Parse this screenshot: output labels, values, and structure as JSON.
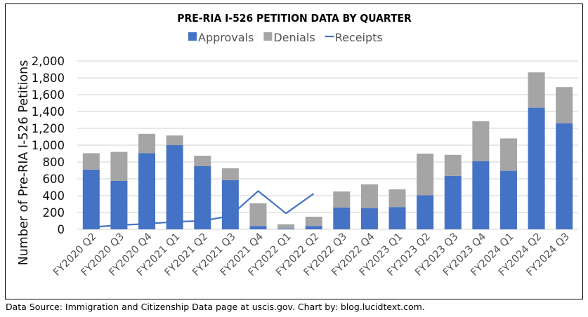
{
  "chart_data": {
    "type": "bar",
    "stacked": true,
    "title": "PRE-RIA I-526 PETITION DATA BY QUARTER",
    "xlabel": "",
    "ylabel": "Number of Pre-RIA I-526 Petitions",
    "ylim": [
      0,
      2000
    ],
    "yticks": [
      0,
      200,
      400,
      600,
      800,
      1000,
      1200,
      1400,
      1600,
      1800,
      2000
    ],
    "ytick_labels": [
      "0",
      "200",
      "400",
      "600",
      "800",
      "1,000",
      "1,200",
      "1,400",
      "1,600",
      "1,800",
      "2,000"
    ],
    "grid": true,
    "legend_position": "top-center",
    "categories": [
      "FY2020 Q2",
      "FY2020 Q3",
      "FY2020 Q4",
      "FY2021 Q1",
      "FY2021 Q2",
      "FY2021 Q3",
      "FY2021 Q4",
      "FY2022 Q1",
      "FY2022 Q2",
      "FY2022 Q3",
      "FY2022 Q4",
      "FY2023 Q1",
      "FY2023 Q2",
      "FY2023 Q3",
      "FY2023 Q4",
      "FY2024 Q1",
      "FY2024 Q2",
      "FY2024 Q3"
    ],
    "series": [
      {
        "name": "Approvals",
        "type": "bar",
        "color": "#4472C4",
        "values": [
          710,
          575,
          905,
          1000,
          750,
          585,
          40,
          10,
          40,
          260,
          250,
          265,
          405,
          635,
          810,
          695,
          1445,
          1260
        ]
      },
      {
        "name": "Denials",
        "type": "bar",
        "color": "#A5A5A5",
        "values": [
          195,
          345,
          230,
          115,
          125,
          140,
          270,
          50,
          110,
          190,
          285,
          210,
          495,
          250,
          475,
          385,
          420,
          430
        ]
      },
      {
        "name": "Receipts",
        "type": "line",
        "color": "#4472C4",
        "values": [
          25,
          50,
          65,
          90,
          100,
          160,
          455,
          190,
          425,
          null,
          null,
          null,
          null,
          null,
          null,
          null,
          null,
          null
        ]
      }
    ]
  },
  "footer": "Data Source: Immigration and Citizenship Data page at uscis.gov. Chart by: blog.lucidtext.com."
}
